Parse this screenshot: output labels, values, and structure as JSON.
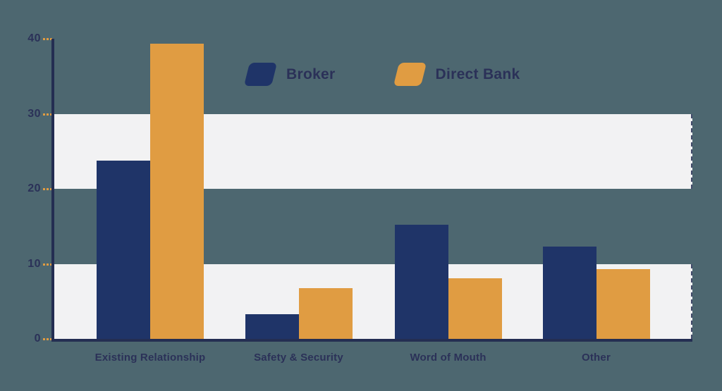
{
  "chart_data": {
    "type": "bar",
    "title": "",
    "xlabel": "",
    "ylabel": "",
    "categories": [
      "Existing Relationship",
      "Safety & Security",
      "Word of Mouth",
      "Other"
    ],
    "series": [
      {
        "name": "Broker",
        "color": "#1f3468",
        "values": [
          23.8,
          3.3,
          15.2,
          12.3
        ]
      },
      {
        "name": "Direct Bank",
        "color": "#e09c42",
        "values": [
          39.3,
          6.8,
          8.1,
          9.3
        ]
      }
    ],
    "ylim": [
      0,
      40
    ],
    "yticks": [
      0,
      10,
      20,
      30,
      40
    ],
    "grid": "horizontal stripes",
    "stripe_ranges": [
      [
        0,
        10
      ],
      [
        20,
        30
      ]
    ],
    "legend_position": "top-center"
  },
  "colors": {
    "background": "#4d6770",
    "stripe": "#f2f2f3",
    "axis": "#242e52",
    "text": "#2b3158",
    "tick_dash": "#e09c42"
  }
}
